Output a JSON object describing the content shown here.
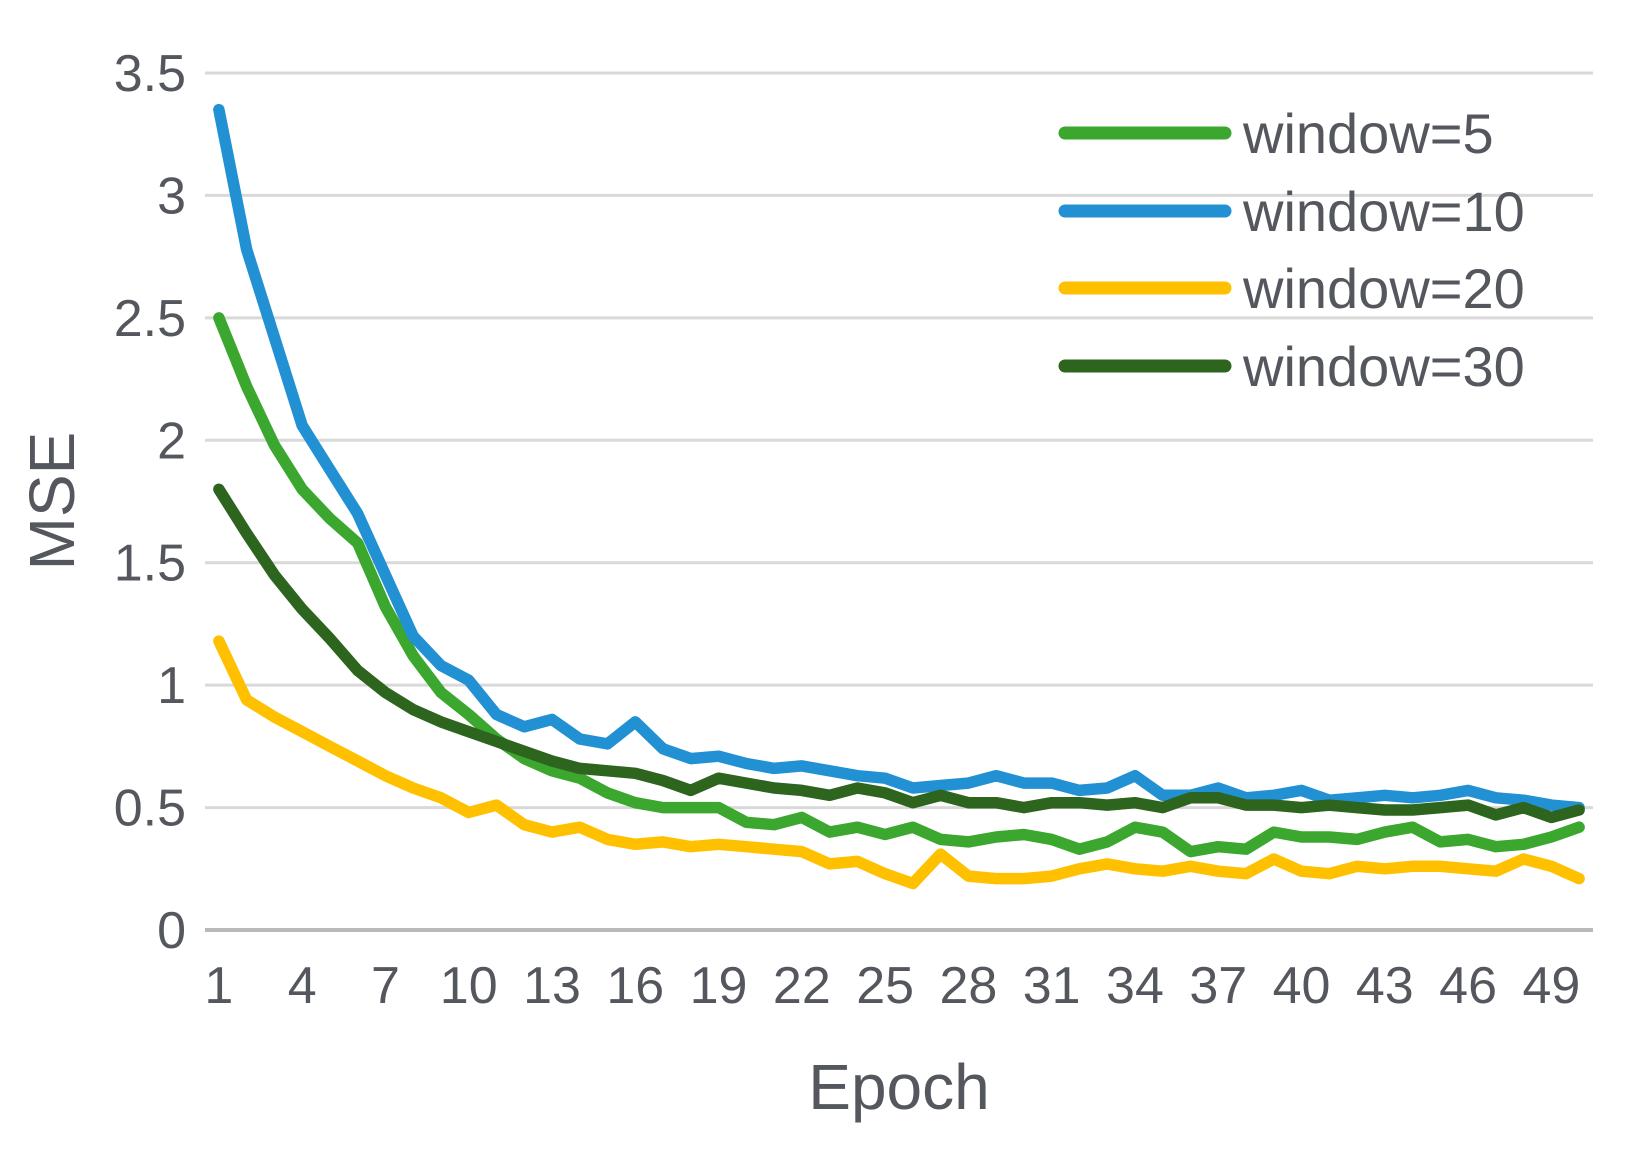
{
  "chart_data": {
    "type": "line",
    "title": "",
    "xlabel": "Epoch",
    "ylabel": "MSE",
    "grid": "horizontal",
    "legend_position": "top-right",
    "x": [
      1,
      2,
      3,
      4,
      5,
      6,
      7,
      8,
      9,
      10,
      11,
      12,
      13,
      14,
      15,
      16,
      17,
      18,
      19,
      20,
      21,
      22,
      23,
      24,
      25,
      26,
      27,
      28,
      29,
      30,
      31,
      32,
      33,
      34,
      35,
      36,
      37,
      38,
      39,
      40,
      41,
      42,
      43,
      44,
      45,
      46,
      47,
      48,
      49,
      50
    ],
    "x_tick_labels": [
      1,
      4,
      7,
      10,
      13,
      16,
      19,
      22,
      25,
      28,
      31,
      34,
      37,
      40,
      43,
      46,
      49
    ],
    "ylim": [
      0,
      3.5
    ],
    "y_ticks": [
      0,
      0.5,
      1,
      1.5,
      2,
      2.5,
      3,
      3.5
    ],
    "y_tick_labels": [
      "0",
      "0.5",
      "1",
      "1.5",
      "2",
      "2.5",
      "3",
      "3.5"
    ],
    "series": [
      {
        "name": "window=5",
        "color": "#3ca72f",
        "values": [
          2.5,
          2.22,
          1.98,
          1.8,
          1.68,
          1.58,
          1.32,
          1.12,
          0.97,
          0.88,
          0.78,
          0.7,
          0.65,
          0.62,
          0.56,
          0.52,
          0.5,
          0.5,
          0.5,
          0.44,
          0.43,
          0.46,
          0.4,
          0.42,
          0.39,
          0.42,
          0.37,
          0.36,
          0.38,
          0.39,
          0.37,
          0.33,
          0.36,
          0.42,
          0.4,
          0.32,
          0.34,
          0.33,
          0.4,
          0.38,
          0.38,
          0.37,
          0.4,
          0.42,
          0.36,
          0.37,
          0.34,
          0.35,
          0.38,
          0.42
        ]
      },
      {
        "name": "window=10",
        "color": "#2191d4",
        "values": [
          3.35,
          2.78,
          2.42,
          2.06,
          1.88,
          1.7,
          1.45,
          1.2,
          1.08,
          1.02,
          0.88,
          0.83,
          0.86,
          0.78,
          0.76,
          0.85,
          0.74,
          0.7,
          0.71,
          0.68,
          0.66,
          0.67,
          0.65,
          0.63,
          0.62,
          0.58,
          0.59,
          0.6,
          0.63,
          0.6,
          0.6,
          0.57,
          0.58,
          0.63,
          0.55,
          0.55,
          0.58,
          0.54,
          0.55,
          0.57,
          0.53,
          0.54,
          0.55,
          0.54,
          0.55,
          0.57,
          0.54,
          0.53,
          0.51,
          0.5
        ]
      },
      {
        "name": "window=20",
        "color": "#ffc000",
        "values": [
          1.18,
          0.94,
          0.87,
          0.81,
          0.75,
          0.69,
          0.63,
          0.58,
          0.54,
          0.48,
          0.51,
          0.43,
          0.4,
          0.42,
          0.37,
          0.35,
          0.36,
          0.34,
          0.35,
          0.34,
          0.33,
          0.32,
          0.27,
          0.28,
          0.23,
          0.19,
          0.31,
          0.22,
          0.21,
          0.21,
          0.22,
          0.25,
          0.27,
          0.25,
          0.24,
          0.26,
          0.24,
          0.23,
          0.29,
          0.24,
          0.23,
          0.26,
          0.25,
          0.26,
          0.26,
          0.25,
          0.24,
          0.29,
          0.26,
          0.21
        ]
      },
      {
        "name": "window=30",
        "color": "#2d641e",
        "values": [
          1.8,
          1.62,
          1.45,
          1.31,
          1.19,
          1.06,
          0.97,
          0.9,
          0.85,
          0.81,
          0.77,
          0.73,
          0.69,
          0.66,
          0.65,
          0.64,
          0.61,
          0.57,
          0.62,
          0.6,
          0.58,
          0.57,
          0.55,
          0.58,
          0.56,
          0.52,
          0.55,
          0.52,
          0.52,
          0.5,
          0.52,
          0.52,
          0.51,
          0.52,
          0.5,
          0.54,
          0.54,
          0.51,
          0.51,
          0.5,
          0.51,
          0.5,
          0.49,
          0.49,
          0.5,
          0.51,
          0.47,
          0.5,
          0.46,
          0.49
        ]
      }
    ],
    "style": {
      "gridline_color": "#d9d9d9",
      "axis_line_color": "#b9b9b9",
      "text_color": "#54575d",
      "line_width": 11.5
    }
  }
}
